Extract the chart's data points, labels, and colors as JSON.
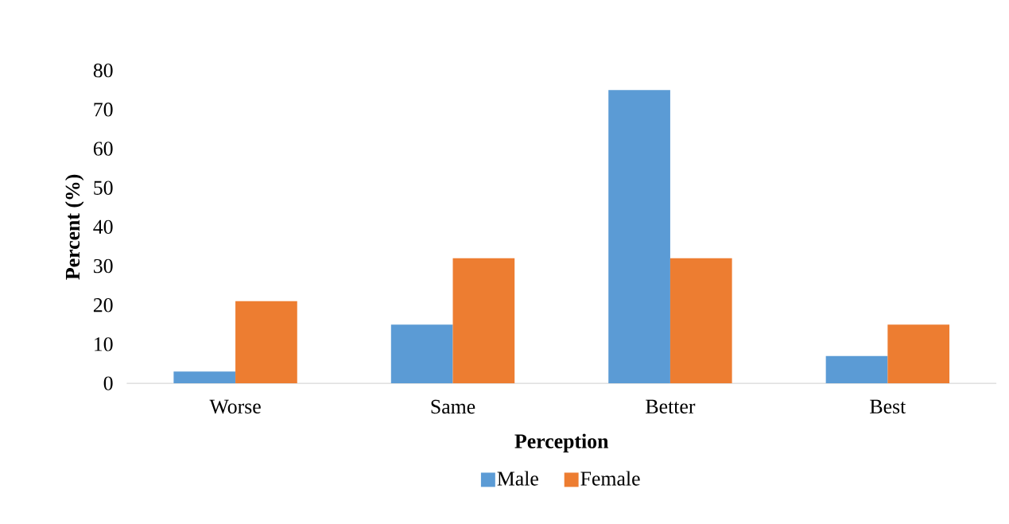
{
  "chart_data": {
    "type": "bar",
    "xlabel": "Perception",
    "ylabel": "Percent (%)",
    "categories": [
      "Worse",
      "Same",
      "Better",
      "Best"
    ],
    "series": [
      {
        "name": "Male",
        "color": "#5b9bd5",
        "values": [
          3,
          15,
          75,
          7
        ]
      },
      {
        "name": "Female",
        "color": "#ed7d31",
        "values": [
          21,
          32,
          32,
          15
        ]
      }
    ],
    "ylim": [
      0,
      80
    ],
    "yticks": [
      0,
      10,
      20,
      30,
      40,
      50,
      60,
      70,
      80
    ],
    "legend": "bottom"
  }
}
